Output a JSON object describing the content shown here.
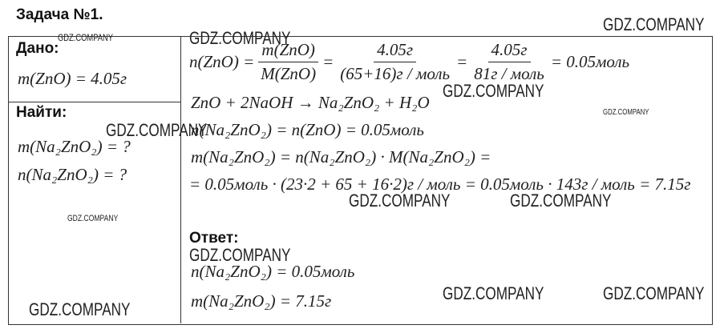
{
  "title": "Задача №1.",
  "given": {
    "heading": "Дано:",
    "items": [
      "m(ZnO) = 4.05г"
    ]
  },
  "find": {
    "heading": "Найти:",
    "items": [
      "m(Na₂ZnO₂) = ?",
      "n(Na₂ZnO₂) = ?"
    ]
  },
  "solution": {
    "eq1": {
      "lhs": "n(ZnO) =",
      "f1_num": "m(ZnO)",
      "f1_den": "M(ZnO)",
      "eq_a": "=",
      "f2_num": "4.05г",
      "f2_den": "(65+16)г / моль",
      "eq_b": "=",
      "f3_num": "4.05г",
      "f3_den": "81г / моль",
      "rhs": "= 0.05моль"
    },
    "eq2": "ZnO + 2NaOH → Na₂ZnO₂ + H₂O",
    "eq3": "n(Na₂ZnO₂) = n(ZnO) = 0.05моль",
    "eq4": "m(Na₂ZnO₂) = n(Na₂ZnO₂) · M(Na₂ZnO₂) =",
    "eq5": "= 0.05моль · (23·2 + 65 + 16·2)г / моль = 0.05моль · 143г / моль = 7.15г"
  },
  "answer": {
    "heading": "Ответ:",
    "items": [
      "n(Na₂ZnO₂) = 0.05моль",
      "m(Na₂ZnO₂) = 7.15г"
    ]
  },
  "watermark": "GDZ.COMPANY"
}
